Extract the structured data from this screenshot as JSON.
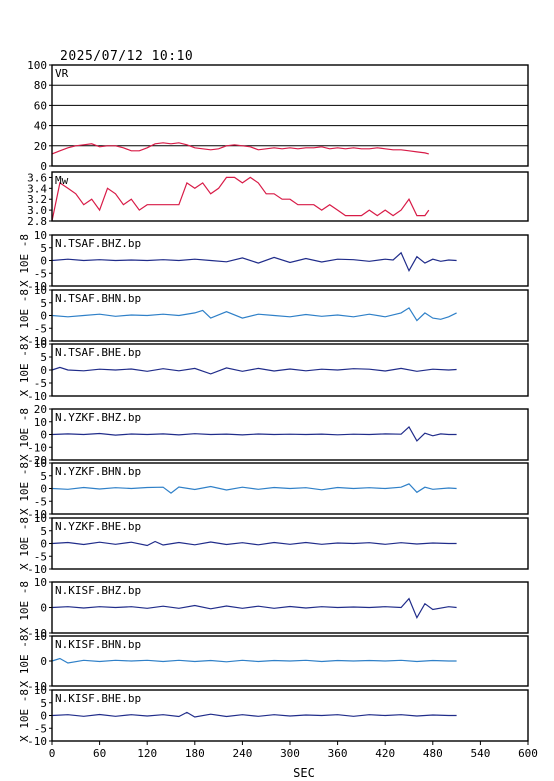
{
  "timestamp": "2025/07/12  10:10",
  "chart_data": [
    {
      "type": "line",
      "name": "VR",
      "label": "VR",
      "ylim": [
        0,
        100
      ],
      "yticks": [
        0,
        20,
        40,
        60,
        80,
        100
      ],
      "grid": true,
      "color": "#d81b47",
      "x": [
        0,
        10,
        20,
        30,
        40,
        50,
        60,
        70,
        80,
        90,
        100,
        110,
        120,
        130,
        140,
        150,
        160,
        170,
        180,
        190,
        200,
        210,
        220,
        230,
        240,
        250,
        260,
        270,
        280,
        290,
        300,
        310,
        320,
        330,
        340,
        350,
        360,
        370,
        380,
        390,
        400,
        410,
        420,
        430,
        440,
        450,
        460,
        470,
        475
      ],
      "y": [
        12,
        15,
        18,
        20,
        21,
        22,
        19,
        20,
        20,
        18,
        15,
        15,
        18,
        22,
        23,
        22,
        23,
        21,
        18,
        17,
        16,
        17,
        20,
        21,
        20,
        19,
        16,
        17,
        18,
        17,
        18,
        17,
        18,
        18,
        19,
        17,
        18,
        17,
        18,
        17,
        17,
        18,
        17,
        16,
        16,
        15,
        14,
        13,
        12
      ]
    },
    {
      "type": "line",
      "name": "Mw",
      "label": "Mw",
      "ylim": [
        2.8,
        3.7
      ],
      "yticks": [
        2.8,
        3.0,
        3.2,
        3.4,
        3.6
      ],
      "grid": false,
      "color": "#d81b47",
      "x": [
        0,
        10,
        20,
        30,
        40,
        50,
        60,
        70,
        80,
        90,
        100,
        110,
        120,
        130,
        140,
        150,
        160,
        170,
        180,
        190,
        200,
        210,
        220,
        230,
        240,
        250,
        260,
        270,
        280,
        290,
        300,
        310,
        320,
        330,
        340,
        350,
        360,
        370,
        380,
        390,
        400,
        410,
        420,
        430,
        440,
        450,
        460,
        470,
        475
      ],
      "y": [
        2.8,
        3.5,
        3.4,
        3.3,
        3.1,
        3.2,
        3.0,
        3.4,
        3.3,
        3.1,
        3.2,
        3.0,
        3.1,
        3.1,
        3.1,
        3.1,
        3.1,
        3.5,
        3.4,
        3.5,
        3.3,
        3.4,
        3.6,
        3.6,
        3.5,
        3.6,
        3.5,
        3.3,
        3.3,
        3.2,
        3.2,
        3.1,
        3.1,
        3.1,
        3.0,
        3.1,
        3.0,
        2.9,
        2.9,
        2.9,
        3.0,
        2.9,
        3.0,
        2.9,
        3.0,
        3.2,
        2.9,
        2.9,
        3.0
      ]
    },
    {
      "type": "line",
      "name": "N.TSAF.BHZ.bp",
      "label": "N.TSAF.BHZ.bp",
      "ylim": [
        -10,
        10
      ],
      "yticks": [
        -10,
        -5,
        0,
        5,
        10
      ],
      "ylabel": "X 10E -8",
      "grid": false,
      "color": "#202c8a",
      "x": [
        0,
        20,
        40,
        60,
        80,
        100,
        120,
        140,
        160,
        180,
        200,
        220,
        240,
        260,
        280,
        300,
        320,
        340,
        360,
        380,
        400,
        420,
        430,
        440,
        450,
        460,
        470,
        480,
        490,
        500,
        510
      ],
      "y": [
        0,
        0.5,
        0,
        0.3,
        0,
        0.2,
        0,
        0.3,
        0,
        0.5,
        0,
        -0.5,
        1,
        -1,
        1.2,
        -0.8,
        0.8,
        -0.6,
        0.5,
        0.3,
        -0.3,
        0.5,
        0.2,
        3,
        -4,
        1.5,
        -1,
        0.5,
        -0.3,
        0.2,
        0
      ]
    },
    {
      "type": "line",
      "name": "N.TSAF.BHN.bp",
      "label": "N.TSAF.BHN.bp",
      "ylim": [
        -10,
        10
      ],
      "yticks": [
        -10,
        -5,
        0,
        5,
        10
      ],
      "ylabel": "X 10E -8",
      "grid": false,
      "color": "#2f80c8",
      "x": [
        0,
        20,
        40,
        60,
        80,
        100,
        120,
        140,
        160,
        180,
        190,
        200,
        220,
        240,
        260,
        280,
        300,
        320,
        340,
        360,
        380,
        400,
        420,
        440,
        450,
        460,
        470,
        480,
        490,
        500,
        510
      ],
      "y": [
        0,
        -0.5,
        0,
        0.5,
        -0.3,
        0.2,
        0,
        0.5,
        0,
        1,
        2,
        -1,
        1.5,
        -1,
        0.5,
        0,
        -0.5,
        0.4,
        -0.3,
        0.2,
        -0.5,
        0.5,
        -0.5,
        1,
        3,
        -2,
        1,
        -1,
        -1.5,
        -0.5,
        1
      ]
    },
    {
      "type": "line",
      "name": "N.TSAF.BHE.bp",
      "label": "N.TSAF.BHE.bp",
      "ylim": [
        -10,
        10
      ],
      "yticks": [
        -10,
        -5,
        0,
        5,
        10
      ],
      "ylabel": "X 10E -8",
      "grid": false,
      "color": "#202c8a",
      "x": [
        0,
        10,
        20,
        40,
        60,
        80,
        100,
        120,
        140,
        160,
        180,
        200,
        220,
        240,
        260,
        280,
        300,
        320,
        340,
        360,
        380,
        400,
        420,
        440,
        460,
        480,
        500,
        510
      ],
      "y": [
        0,
        1,
        0,
        -0.3,
        0.3,
        0,
        0.4,
        -0.5,
        0.5,
        -0.3,
        0.6,
        -1.5,
        0.8,
        -0.5,
        0.6,
        -0.4,
        0.4,
        -0.3,
        0.3,
        0,
        0.5,
        0.3,
        -0.4,
        0.6,
        -0.5,
        0.3,
        0,
        0.2
      ]
    },
    {
      "type": "line",
      "name": "N.YZKF.BHZ.bp",
      "label": "N.YZKF.BHZ.bp",
      "ylim": [
        -20,
        20
      ],
      "yticks": [
        -20,
        -10,
        0,
        10,
        20
      ],
      "ylabel": "X 10E -8",
      "grid": false,
      "color": "#202c8a",
      "x": [
        0,
        20,
        40,
        60,
        80,
        100,
        120,
        140,
        160,
        180,
        200,
        220,
        240,
        260,
        280,
        300,
        320,
        340,
        360,
        380,
        400,
        420,
        440,
        450,
        460,
        470,
        480,
        490,
        500,
        510
      ],
      "y": [
        0,
        0.5,
        0,
        0.8,
        -0.5,
        0.4,
        0,
        0.5,
        -0.3,
        0.6,
        0,
        0.3,
        -0.3,
        0.4,
        0,
        0.2,
        0,
        0.3,
        -0.2,
        0.2,
        0,
        0.5,
        0.2,
        6,
        -5,
        1,
        -1,
        0.5,
        0,
        0
      ]
    },
    {
      "type": "line",
      "name": "N.YZKF.BHN.bp",
      "label": "N.YZKF.BHN.bp",
      "ylim": [
        -10,
        10
      ],
      "yticks": [
        -10,
        -5,
        0,
        5,
        10
      ],
      "ylabel": "X 10E -8",
      "grid": false,
      "color": "#2f80c8",
      "x": [
        0,
        20,
        40,
        60,
        80,
        100,
        120,
        140,
        150,
        160,
        180,
        200,
        220,
        240,
        260,
        280,
        300,
        320,
        340,
        360,
        380,
        400,
        420,
        440,
        450,
        460,
        470,
        480,
        500,
        510
      ],
      "y": [
        0,
        -0.3,
        0.4,
        -0.2,
        0.3,
        0,
        0.4,
        0.5,
        -1.8,
        0.6,
        -0.4,
        0.8,
        -0.6,
        0.5,
        -0.3,
        0.4,
        0,
        0.3,
        -0.5,
        0.4,
        0,
        0.3,
        0,
        0.5,
        1.8,
        -1.5,
        0.5,
        -0.3,
        0.2,
        0
      ]
    },
    {
      "type": "line",
      "name": "N.YZKF.BHE.bp",
      "label": "N.YZKF.BHE.bp",
      "ylim": [
        -10,
        10
      ],
      "yticks": [
        -10,
        -5,
        0,
        5,
        10
      ],
      "ylabel": "X 10E -8",
      "grid": false,
      "color": "#202c8a",
      "x": [
        0,
        20,
        40,
        60,
        80,
        100,
        120,
        130,
        140,
        160,
        180,
        200,
        220,
        240,
        260,
        280,
        300,
        320,
        340,
        360,
        380,
        400,
        420,
        440,
        460,
        480,
        500,
        510
      ],
      "y": [
        0,
        0.4,
        -0.4,
        0.5,
        -0.3,
        0.5,
        -0.8,
        0.8,
        -0.6,
        0.4,
        -0.5,
        0.6,
        -0.4,
        0.3,
        -0.5,
        0.4,
        -0.3,
        0.4,
        -0.3,
        0.2,
        0,
        0.3,
        -0.3,
        0.3,
        -0.2,
        0.2,
        0,
        0
      ]
    },
    {
      "type": "line",
      "name": "N.KISF.BHZ.bp",
      "label": "N.KISF.BHZ.bp",
      "ylim": [
        -10,
        10
      ],
      "yticks": [
        -10,
        0,
        10
      ],
      "ylabel": "X 10E -8",
      "grid": false,
      "color": "#202c8a",
      "x": [
        0,
        20,
        40,
        60,
        80,
        100,
        120,
        140,
        160,
        180,
        200,
        220,
        240,
        260,
        280,
        300,
        320,
        340,
        360,
        380,
        400,
        420,
        440,
        450,
        460,
        470,
        480,
        500,
        510
      ],
      "y": [
        0,
        0.3,
        -0.2,
        0.3,
        0,
        0.3,
        -0.3,
        0.5,
        -0.3,
        0.8,
        -0.5,
        0.6,
        -0.3,
        0.5,
        -0.3,
        0.4,
        -0.2,
        0.3,
        0,
        0.2,
        0,
        0.3,
        0,
        3.5,
        -4,
        1.5,
        -0.8,
        0.3,
        0
      ]
    },
    {
      "type": "line",
      "name": "N.KISF.BHN.bp",
      "label": "N.KISF.BHN.bp",
      "ylim": [
        -10,
        10
      ],
      "yticks": [
        -10,
        0,
        10
      ],
      "ylabel": "X 10E -8",
      "grid": false,
      "color": "#2f80c8",
      "x": [
        0,
        10,
        20,
        40,
        60,
        80,
        100,
        120,
        140,
        160,
        180,
        200,
        220,
        240,
        260,
        280,
        300,
        320,
        340,
        360,
        380,
        400,
        420,
        440,
        460,
        480,
        500,
        510
      ],
      "y": [
        0,
        1,
        -0.8,
        0.3,
        -0.2,
        0.3,
        0,
        0.3,
        -0.2,
        0.3,
        -0.2,
        0.2,
        -0.3,
        0.3,
        -0.2,
        0.2,
        0,
        0.3,
        -0.2,
        0.2,
        0,
        0.2,
        0,
        0.3,
        -0.2,
        0.2,
        0,
        0
      ]
    },
    {
      "type": "line",
      "name": "N.KISF.BHE.bp",
      "label": "N.KISF.BHE.bp",
      "ylim": [
        -10,
        10
      ],
      "yticks": [
        -10,
        -5,
        0,
        5,
        10
      ],
      "ylabel": "X 10E -8",
      "grid": false,
      "color": "#202c8a",
      "x": [
        0,
        20,
        40,
        60,
        80,
        100,
        120,
        140,
        160,
        170,
        180,
        200,
        220,
        240,
        260,
        280,
        300,
        320,
        340,
        360,
        380,
        400,
        420,
        440,
        460,
        480,
        500,
        510
      ],
      "y": [
        0,
        0.3,
        -0.3,
        0.4,
        -0.3,
        0.3,
        -0.2,
        0.3,
        -0.4,
        1.2,
        -0.6,
        0.5,
        -0.4,
        0.3,
        -0.3,
        0.3,
        -0.2,
        0.2,
        0,
        0.3,
        -0.3,
        0.3,
        0,
        0.3,
        -0.2,
        0.2,
        0,
        0
      ]
    }
  ],
  "xaxis": {
    "label": "SEC",
    "xlim": [
      0,
      600
    ],
    "ticks": [
      0,
      60,
      120,
      180,
      240,
      300,
      360,
      420,
      480,
      540,
      600
    ]
  }
}
